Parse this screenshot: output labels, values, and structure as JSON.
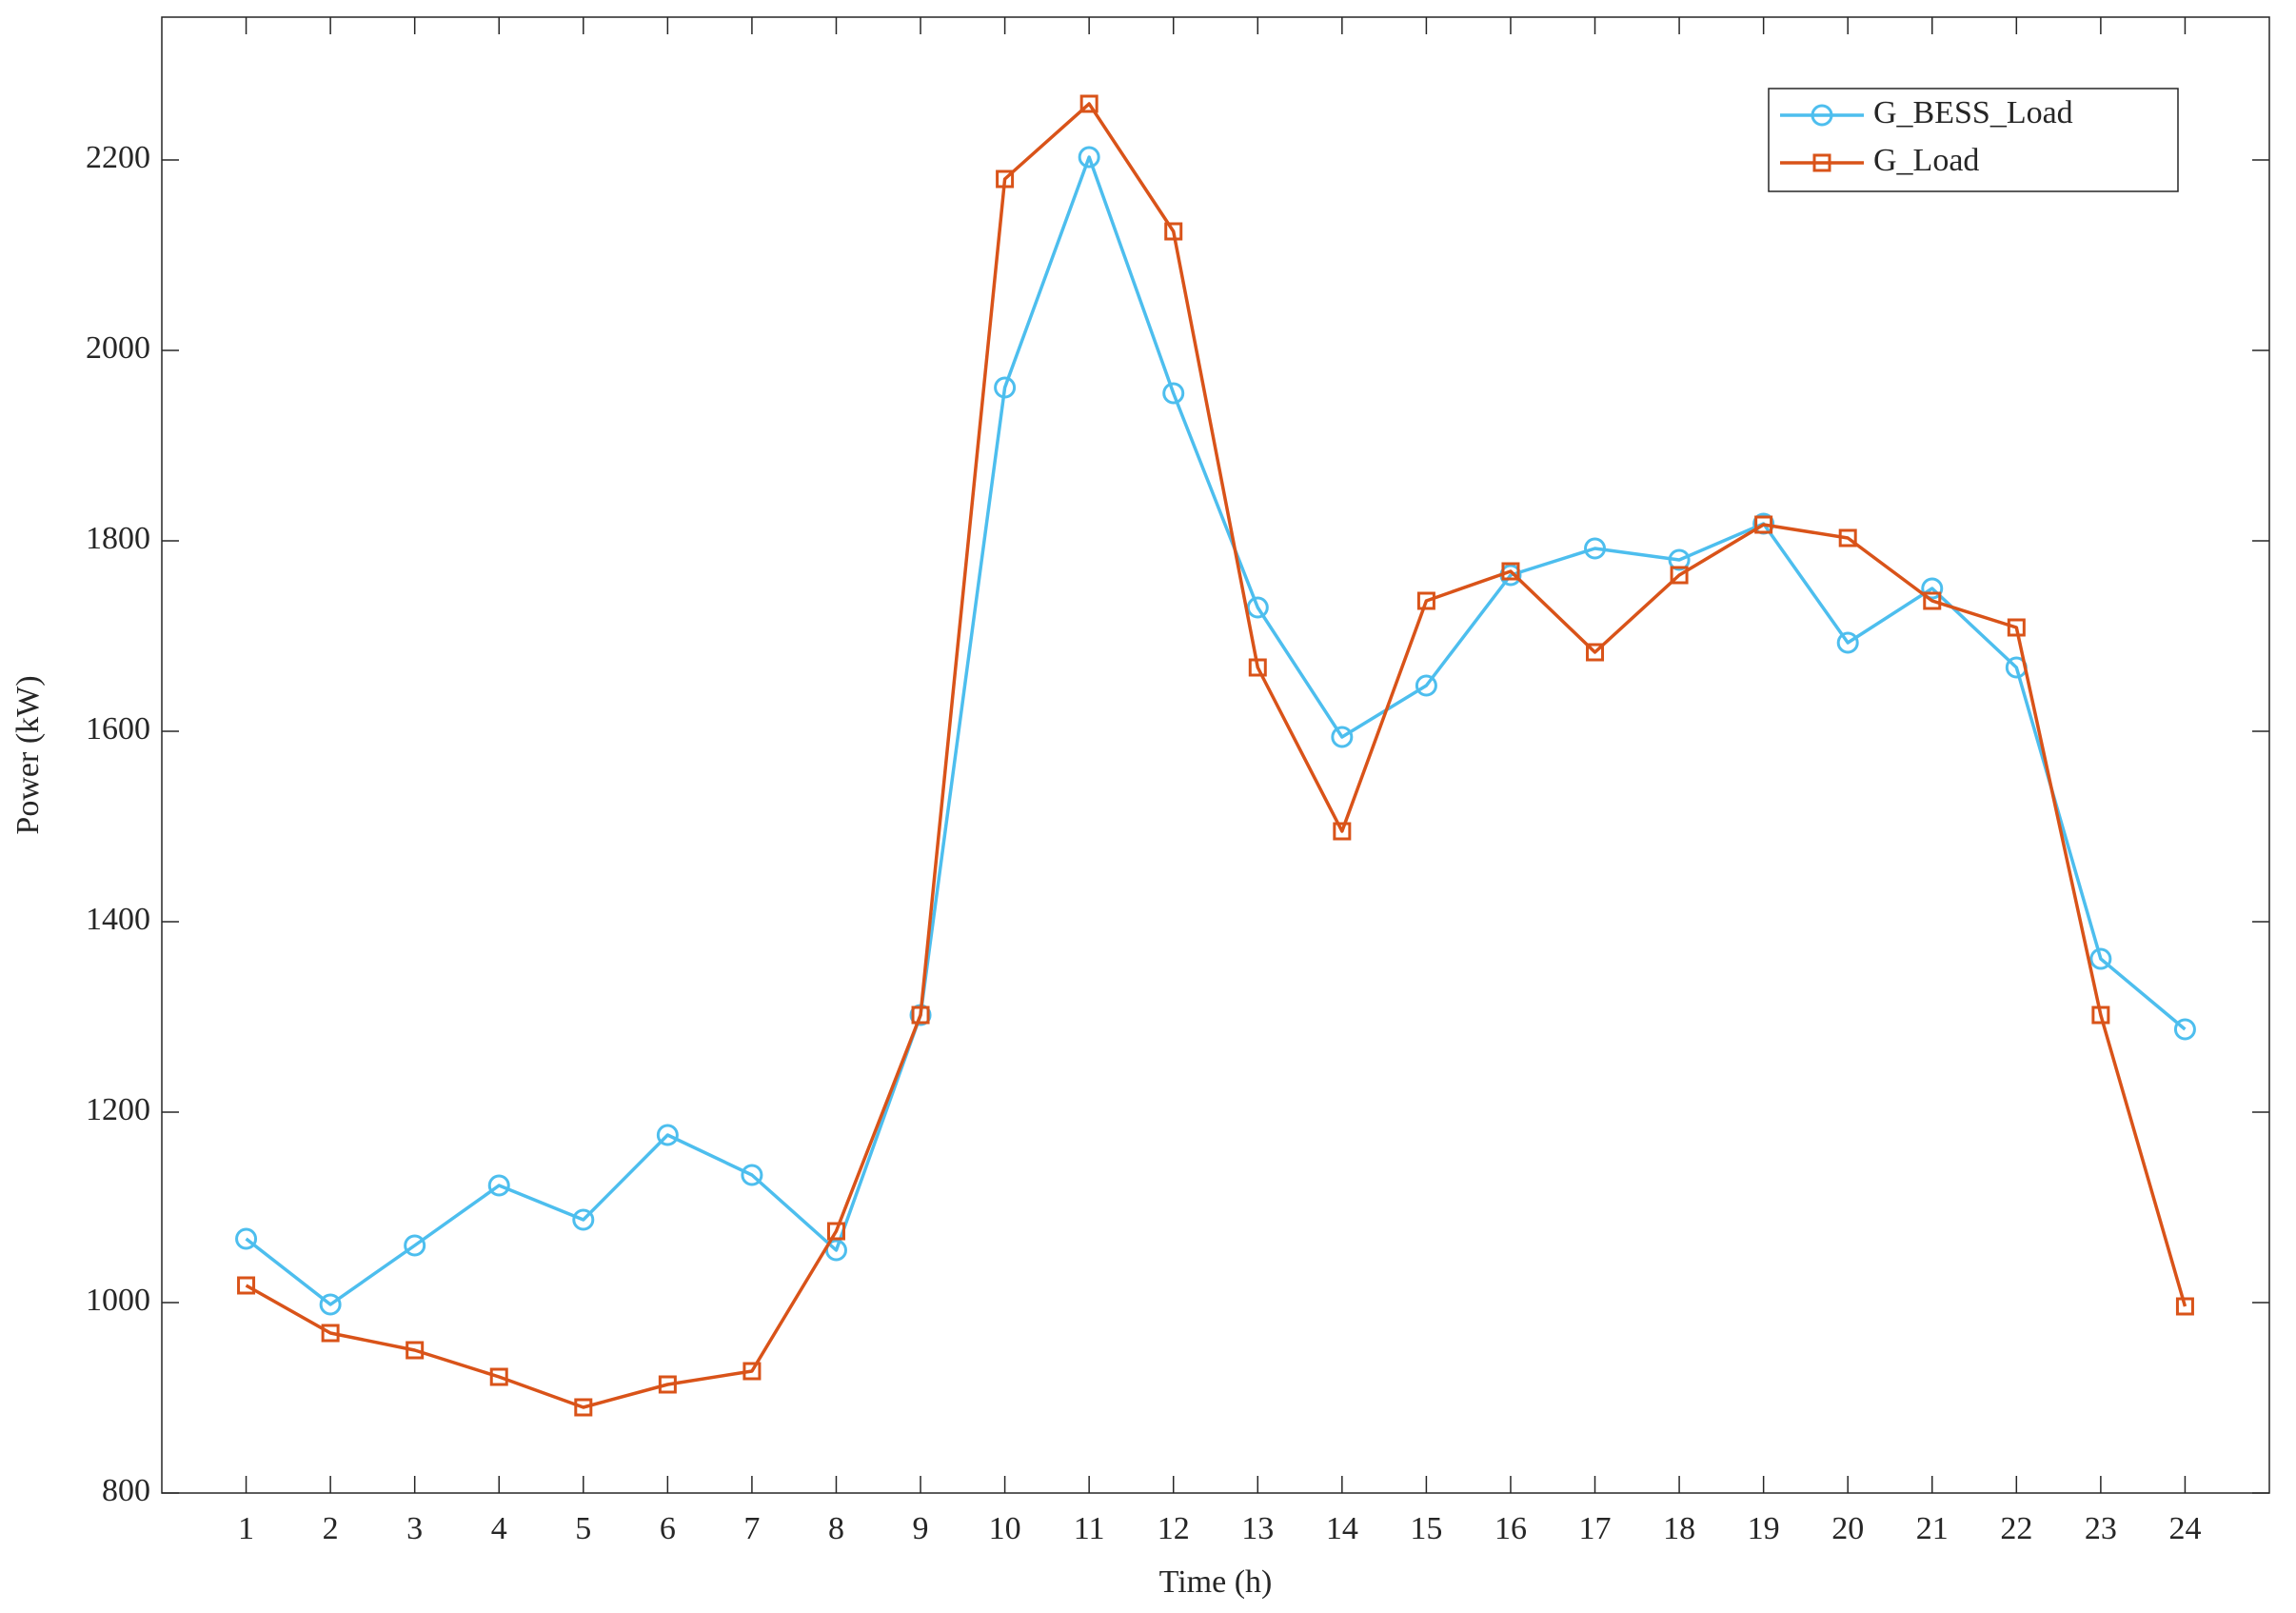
{
  "chart_data": {
    "type": "line",
    "xlabel": "Time (h)",
    "ylabel": "Power (kW)",
    "x": [
      1,
      2,
      3,
      4,
      5,
      6,
      7,
      8,
      9,
      10,
      11,
      12,
      13,
      14,
      15,
      16,
      17,
      18,
      19,
      20,
      21,
      22,
      23,
      24
    ],
    "series": [
      {
        "name": "G_BESS_Load",
        "color": "#4dbeee",
        "marker": "circle",
        "values": [
          1067,
          998,
          1060,
          1123,
          1087,
          1176,
          1134,
          1055,
          1302,
          1961,
          2203,
          1955,
          1730,
          1594,
          1648,
          1764,
          1792,
          1780,
          1818,
          1693,
          1750,
          1667,
          1361,
          1287
        ]
      },
      {
        "name": "G_Load",
        "color": "#d95319",
        "marker": "square",
        "values": [
          1018,
          968,
          950,
          922,
          890,
          914,
          928,
          1075,
          1302,
          2180,
          2259,
          2125,
          1667,
          1495,
          1737,
          1768,
          1683,
          1764,
          1817,
          1803,
          1737,
          1709,
          1302,
          996
        ]
      }
    ],
    "xlim": [
      0,
      25
    ],
    "xticks": [
      1,
      2,
      3,
      4,
      5,
      6,
      7,
      8,
      9,
      10,
      11,
      12,
      13,
      14,
      15,
      16,
      17,
      18,
      19,
      20,
      21,
      22,
      23,
      24
    ],
    "ylim": [
      800,
      2350
    ],
    "yticks": [
      800,
      1000,
      1200,
      1400,
      1600,
      1800,
      2000,
      2200
    ],
    "grid": false,
    "legend": "upper right"
  }
}
